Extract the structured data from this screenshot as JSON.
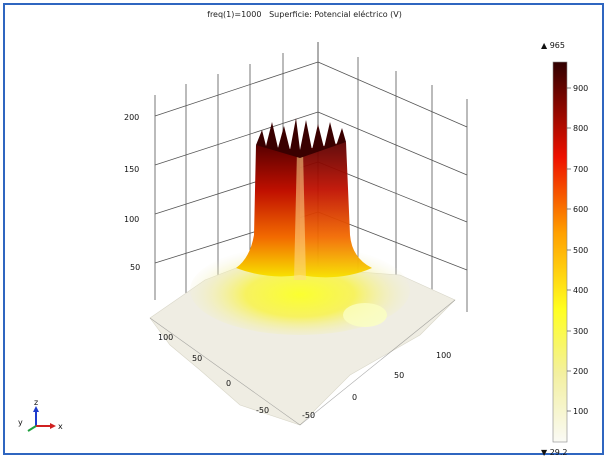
{
  "title_left": "freq(1)=1000",
  "title_right": "Superficie: Potencial eléctrico (V)",
  "z_ticks": [
    "200",
    "150",
    "100",
    "50"
  ],
  "y_ticks": [
    "100",
    "50",
    "0",
    "-50"
  ],
  "x_ticks": [
    "-50",
    "0",
    "50",
    "100"
  ],
  "colorbar": {
    "max_label": "▲ 965",
    "min_label": "▼ 29.2",
    "ticks": [
      "900",
      "800",
      "700",
      "600",
      "500",
      "400",
      "300",
      "200",
      "100"
    ]
  },
  "axis_triad": {
    "x": "x",
    "y": "y",
    "z": "z"
  },
  "colors": {
    "frame": "#2f66c0",
    "peak": "#5a0000",
    "base": "#f5f3ea"
  }
}
